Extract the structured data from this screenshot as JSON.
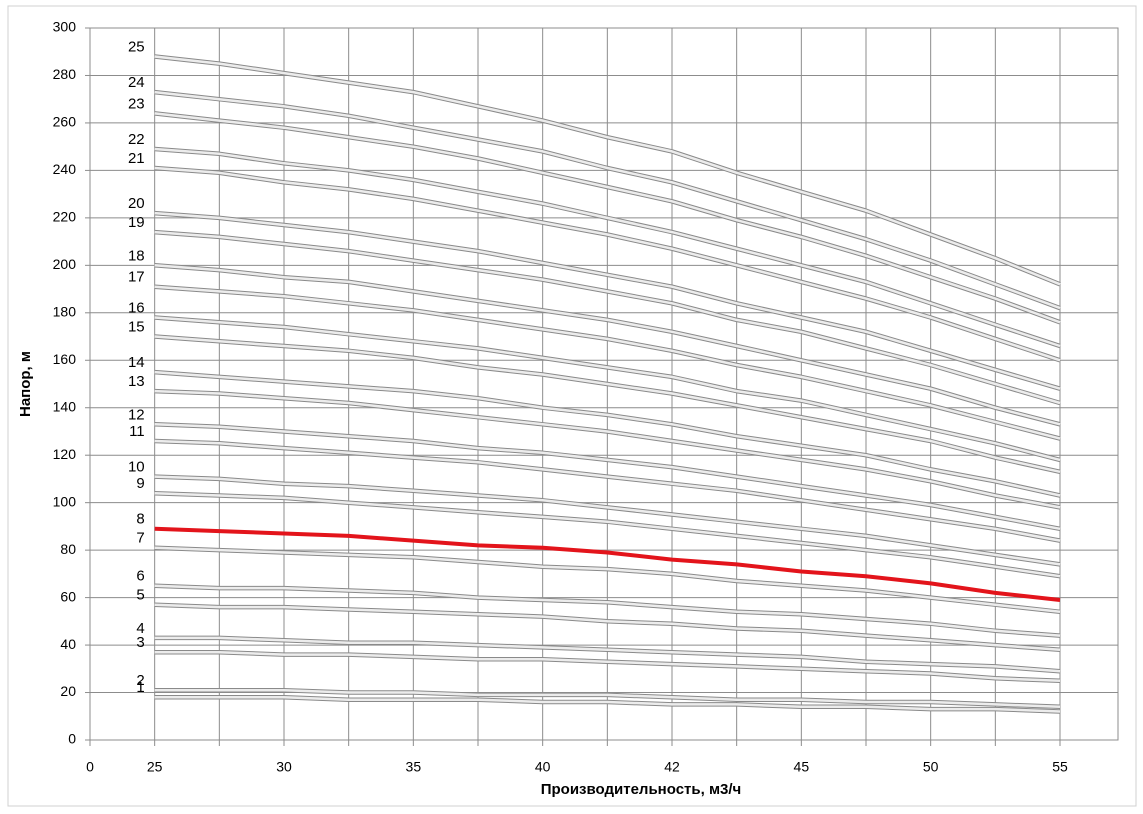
{
  "chart_data": {
    "type": "line",
    "x_label": "Производительность, м3/ч",
    "y_label": "Напор, м",
    "categories": [
      "0",
      "25",
      null,
      "30",
      null,
      "35",
      null,
      "40",
      null,
      "42",
      null,
      "45",
      null,
      "50",
      null,
      "55"
    ],
    "ylim": [
      0,
      300
    ],
    "yticks": [
      0,
      20,
      40,
      60,
      80,
      100,
      120,
      140,
      160,
      180,
      200,
      220,
      240,
      260,
      280,
      300
    ],
    "grid": true,
    "series": [
      {
        "name": "1",
        "color": "#bdbdbd",
        "values": [
          null,
          18,
          18,
          18,
          17,
          17,
          17,
          16,
          16,
          15,
          15,
          14,
          14,
          13,
          13,
          12
        ]
      },
      {
        "name": "2",
        "color": "#bdbdbd",
        "values": [
          null,
          21,
          21,
          21,
          20,
          20,
          19,
          19,
          19,
          18,
          17,
          17,
          16,
          16,
          15,
          14
        ]
      },
      {
        "name": "3",
        "color": "#bdbdbd",
        "values": [
          null,
          37,
          37,
          36,
          36,
          35,
          34,
          34,
          33,
          32,
          31,
          30,
          29,
          28,
          26,
          25
        ]
      },
      {
        "name": "4",
        "color": "#bdbdbd",
        "values": [
          null,
          43,
          43,
          42,
          41,
          41,
          40,
          39,
          38,
          37,
          36,
          35,
          33,
          32,
          31,
          29
        ]
      },
      {
        "name": "5",
        "color": "#bdbdbd",
        "values": [
          null,
          57,
          56,
          56,
          55,
          54,
          53,
          52,
          50,
          49,
          47,
          46,
          44,
          42,
          40,
          38
        ]
      },
      {
        "name": "6",
        "color": "#bdbdbd",
        "values": [
          null,
          65,
          64,
          64,
          63,
          62,
          60,
          59,
          58,
          56,
          54,
          53,
          51,
          49,
          46,
          44
        ]
      },
      {
        "name": "7",
        "color": "#bdbdbd",
        "values": [
          null,
          81,
          80,
          79,
          78,
          77,
          75,
          73,
          72,
          70,
          67,
          65,
          63,
          60,
          57,
          54
        ]
      },
      {
        "name": "8",
        "color": "#e3141b",
        "values": [
          null,
          89,
          88,
          87,
          86,
          84,
          82,
          81,
          79,
          76,
          74,
          71,
          69,
          66,
          62,
          59
        ]
      },
      {
        "name": "9",
        "color": "#bdbdbd",
        "values": [
          null,
          104,
          103,
          102,
          100,
          98,
          96,
          94,
          92,
          89,
          86,
          83,
          80,
          77,
          73,
          69
        ]
      },
      {
        "name": "10",
        "color": "#bdbdbd",
        "values": [
          null,
          111,
          110,
          108,
          107,
          105,
          103,
          101,
          98,
          95,
          92,
          89,
          86,
          82,
          78,
          74
        ]
      },
      {
        "name": "11",
        "color": "#bdbdbd",
        "values": [
          null,
          126,
          125,
          123,
          121,
          119,
          117,
          114,
          111,
          108,
          105,
          101,
          97,
          93,
          89,
          84
        ]
      },
      {
        "name": "12",
        "color": "#bdbdbd",
        "values": [
          null,
          133,
          132,
          130,
          128,
          126,
          123,
          121,
          118,
          115,
          111,
          107,
          103,
          99,
          94,
          89
        ]
      },
      {
        "name": "13",
        "color": "#bdbdbd",
        "values": [
          null,
          147,
          146,
          144,
          142,
          139,
          136,
          133,
          130,
          126,
          122,
          118,
          114,
          109,
          103,
          98
        ]
      },
      {
        "name": "14",
        "color": "#bdbdbd",
        "values": [
          null,
          155,
          153,
          151,
          149,
          147,
          144,
          140,
          137,
          133,
          128,
          124,
          120,
          114,
          109,
          103
        ]
      },
      {
        "name": "15",
        "color": "#bdbdbd",
        "values": [
          null,
          170,
          168,
          166,
          164,
          161,
          157,
          154,
          150,
          146,
          141,
          136,
          131,
          126,
          119,
          113
        ]
      },
      {
        "name": "16",
        "color": "#bdbdbd",
        "values": [
          null,
          178,
          176,
          174,
          171,
          168,
          165,
          161,
          157,
          153,
          147,
          143,
          137,
          131,
          125,
          118
        ]
      },
      {
        "name": "17",
        "color": "#bdbdbd",
        "values": [
          null,
          191,
          189,
          187,
          184,
          181,
          177,
          173,
          169,
          164,
          158,
          153,
          147,
          141,
          134,
          127
        ]
      },
      {
        "name": "18",
        "color": "#bdbdbd",
        "values": [
          null,
          200,
          198,
          195,
          193,
          189,
          185,
          181,
          177,
          172,
          166,
          160,
          154,
          148,
          140,
          133
        ]
      },
      {
        "name": "19",
        "color": "#bdbdbd",
        "values": [
          null,
          214,
          212,
          209,
          206,
          202,
          198,
          194,
          189,
          184,
          177,
          172,
          165,
          158,
          150,
          142
        ]
      },
      {
        "name": "20",
        "color": "#bdbdbd",
        "values": [
          null,
          222,
          220,
          217,
          214,
          210,
          206,
          201,
          196,
          191,
          184,
          178,
          172,
          164,
          156,
          148
        ]
      },
      {
        "name": "21",
        "color": "#bdbdbd",
        "values": [
          null,
          241,
          239,
          235,
          232,
          228,
          223,
          218,
          213,
          207,
          200,
          193,
          186,
          178,
          169,
          160
        ]
      },
      {
        "name": "22",
        "color": "#bdbdbd",
        "values": [
          null,
          249,
          247,
          243,
          240,
          236,
          231,
          226,
          220,
          214,
          207,
          200,
          193,
          184,
          175,
          166
        ]
      },
      {
        "name": "23",
        "color": "#bdbdbd",
        "values": [
          null,
          264,
          261,
          258,
          254,
          250,
          245,
          239,
          233,
          227,
          219,
          212,
          204,
          195,
          186,
          176
        ]
      },
      {
        "name": "24",
        "color": "#bdbdbd",
        "values": [
          null,
          273,
          270,
          267,
          263,
          258,
          253,
          248,
          241,
          235,
          227,
          219,
          211,
          202,
          192,
          182
        ]
      },
      {
        "name": "25",
        "color": "#bdbdbd",
        "values": [
          null,
          288,
          285,
          281,
          277,
          273,
          267,
          261,
          254,
          248,
          239,
          231,
          223,
          213,
          203,
          192
        ]
      }
    ]
  }
}
